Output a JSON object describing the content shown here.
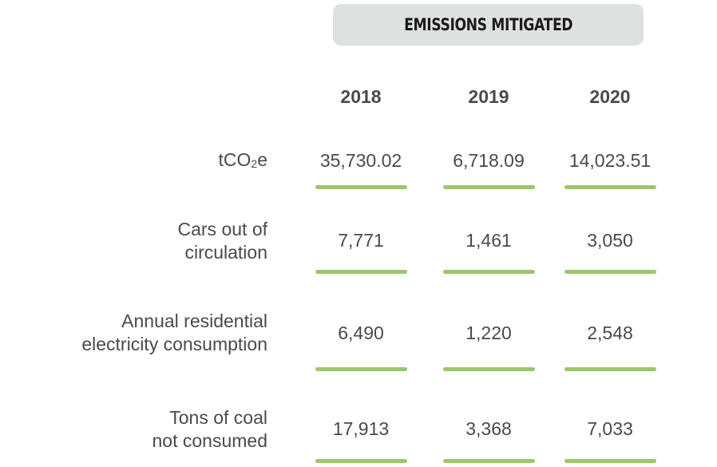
{
  "header": {
    "title": "EMISSIONS MITIGATED"
  },
  "years": [
    "2018",
    "2019",
    "2020"
  ],
  "rows": [
    {
      "label_line1": "tCO",
      "label_sub": "2",
      "label_suffix": "e",
      "values": [
        "35,730.02",
        "6,718.09",
        "14,023.51"
      ]
    },
    {
      "label_line1": "Cars out of",
      "label_line2": "circulation",
      "values": [
        "7,771",
        "1,461",
        "3,050"
      ]
    },
    {
      "label_line1": "Annual residential",
      "label_line2": "electricity consumption",
      "values": [
        "6,490",
        "1,220",
        "2,548"
      ]
    },
    {
      "label_line1": "Tons of coal",
      "label_line2": "not consumed",
      "values": [
        "17,913",
        "3,368",
        "7,033"
      ]
    }
  ],
  "colors": {
    "header_bg": "#dde1e0",
    "underline": "#9bc76a",
    "text": "#4a4a4a"
  }
}
